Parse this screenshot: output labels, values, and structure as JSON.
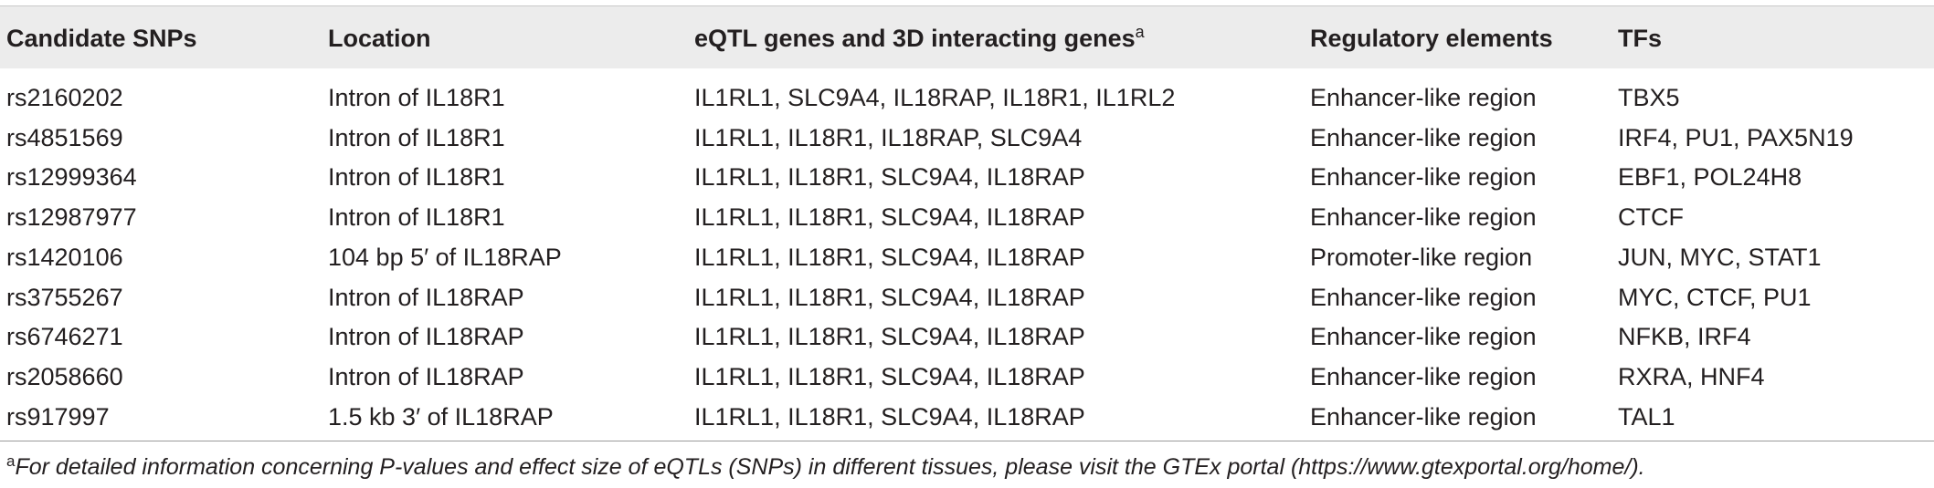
{
  "table": {
    "header": [
      "Candidate SNPs",
      "Location",
      {
        "text": "eQTL genes and 3D interacting genes",
        "note": "a"
      },
      "Regulatory elements",
      "TFs"
    ],
    "rows": [
      [
        "rs2160202",
        "Intron of IL18R1",
        "IL1RL1, SLC9A4, IL18RAP, IL18R1, IL1RL2",
        "Enhancer-like region",
        "TBX5"
      ],
      [
        "rs4851569",
        "Intron of IL18R1",
        "IL1RL1, IL18R1, IL18RAP, SLC9A4",
        "Enhancer-like region",
        "IRF4, PU1, PAX5N19"
      ],
      [
        "rs12999364",
        "Intron of IL18R1",
        "IL1RL1, IL18R1, SLC9A4, IL18RAP",
        "Enhancer-like region",
        "EBF1, POL24H8"
      ],
      [
        "rs12987977",
        "Intron of IL18R1",
        "IL1RL1, IL18R1, SLC9A4, IL18RAP",
        "Enhancer-like region",
        "CTCF"
      ],
      [
        "rs1420106",
        "104 bp 5′ of IL18RAP",
        "IL1RL1, IL18R1, SLC9A4, IL18RAP",
        "Promoter-like region",
        "JUN, MYC, STAT1"
      ],
      [
        "rs3755267",
        "Intron of IL18RAP",
        "IL1RL1, IL18R1, SLC9A4, IL18RAP",
        "Enhancer-like region",
        "MYC, CTCF, PU1"
      ],
      [
        "rs6746271",
        "Intron of IL18RAP",
        "IL1RL1, IL18R1, SLC9A4, IL18RAP",
        "Enhancer-like region",
        "NFKB, IRF4"
      ],
      [
        "rs2058660",
        "Intron of IL18RAP",
        "IL1RL1, IL18R1, SLC9A4, IL18RAP",
        "Enhancer-like region",
        "RXRA, HNF4"
      ],
      [
        "rs917997",
        "1.5 kb 3′ of IL18RAP",
        "IL1RL1, IL18R1, SLC9A4, IL18RAP",
        "Enhancer-like region",
        "TAL1"
      ]
    ]
  },
  "footnote": {
    "marker": "a",
    "text": "For detailed information concerning P-values and effect size of eQTLs (SNPs) in different tissues, please visit the GTEx portal (https://www.gtexportal.org/home/)."
  }
}
